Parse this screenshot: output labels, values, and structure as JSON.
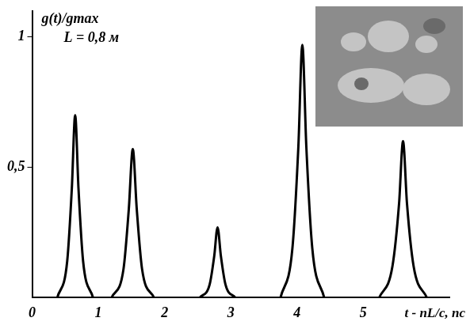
{
  "chart_data": {
    "type": "line",
    "y_label": "g(t)/gmax",
    "x_label": "t - nL/c, пс",
    "annotations": [
      "L = 0,8 м"
    ],
    "x": [
      0.38,
      0.53,
      0.6,
      0.65,
      0.7,
      0.77,
      0.92,
      1.1,
      1.2,
      1.38,
      1.46,
      1.52,
      1.58,
      1.66,
      1.84,
      2.2,
      2.53,
      2.68,
      2.75,
      2.8,
      2.85,
      2.92,
      3.07,
      3.5,
      3.75,
      3.93,
      4.02,
      4.08,
      4.14,
      4.23,
      4.41,
      4.9,
      5.24,
      5.44,
      5.54,
      5.6,
      5.66,
      5.76,
      5.96
    ],
    "values": [
      0,
      0.14,
      0.42,
      0.7,
      0.42,
      0.14,
      0,
      null,
      0,
      0.11,
      0.34,
      0.57,
      0.34,
      0.11,
      0,
      null,
      0,
      0.05,
      0.16,
      0.27,
      0.16,
      0.05,
      0,
      null,
      0,
      0.19,
      0.58,
      0.97,
      0.58,
      0.19,
      0,
      null,
      0,
      0.12,
      0.36,
      0.6,
      0.36,
      0.12,
      0
    ],
    "color": "#000000",
    "xlim": [
      0,
      6.3
    ],
    "xticks": [
      0,
      1,
      2,
      3,
      4,
      5
    ],
    "ylim": [
      0,
      1.1
    ],
    "yticks": [
      {
        "value": 0.5,
        "label": "0,5"
      },
      1
    ],
    "grid": false
  }
}
